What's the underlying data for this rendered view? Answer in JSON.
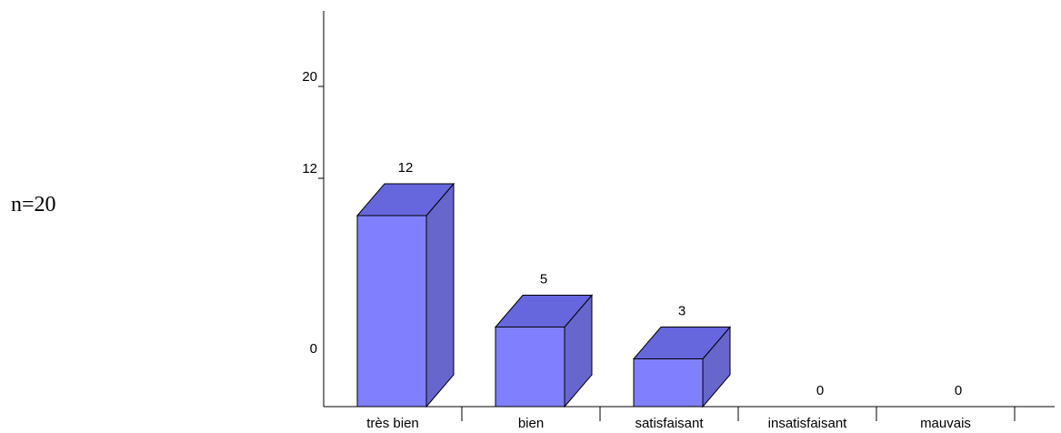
{
  "note": "n=20",
  "chart_data": {
    "type": "bar",
    "categories": [
      "très bien",
      "bien",
      "satisfaisant",
      "insatisfaisant",
      "mauvais"
    ],
    "values": [
      12,
      5,
      3,
      0,
      0
    ],
    "yticks": [
      0,
      12,
      20
    ],
    "ylim": [
      0,
      22
    ],
    "grid": false,
    "bar3d": true,
    "colors": {
      "front": "#8080ff",
      "top": "#6666dd",
      "side": "#6666cc",
      "edge": "#000000"
    }
  }
}
